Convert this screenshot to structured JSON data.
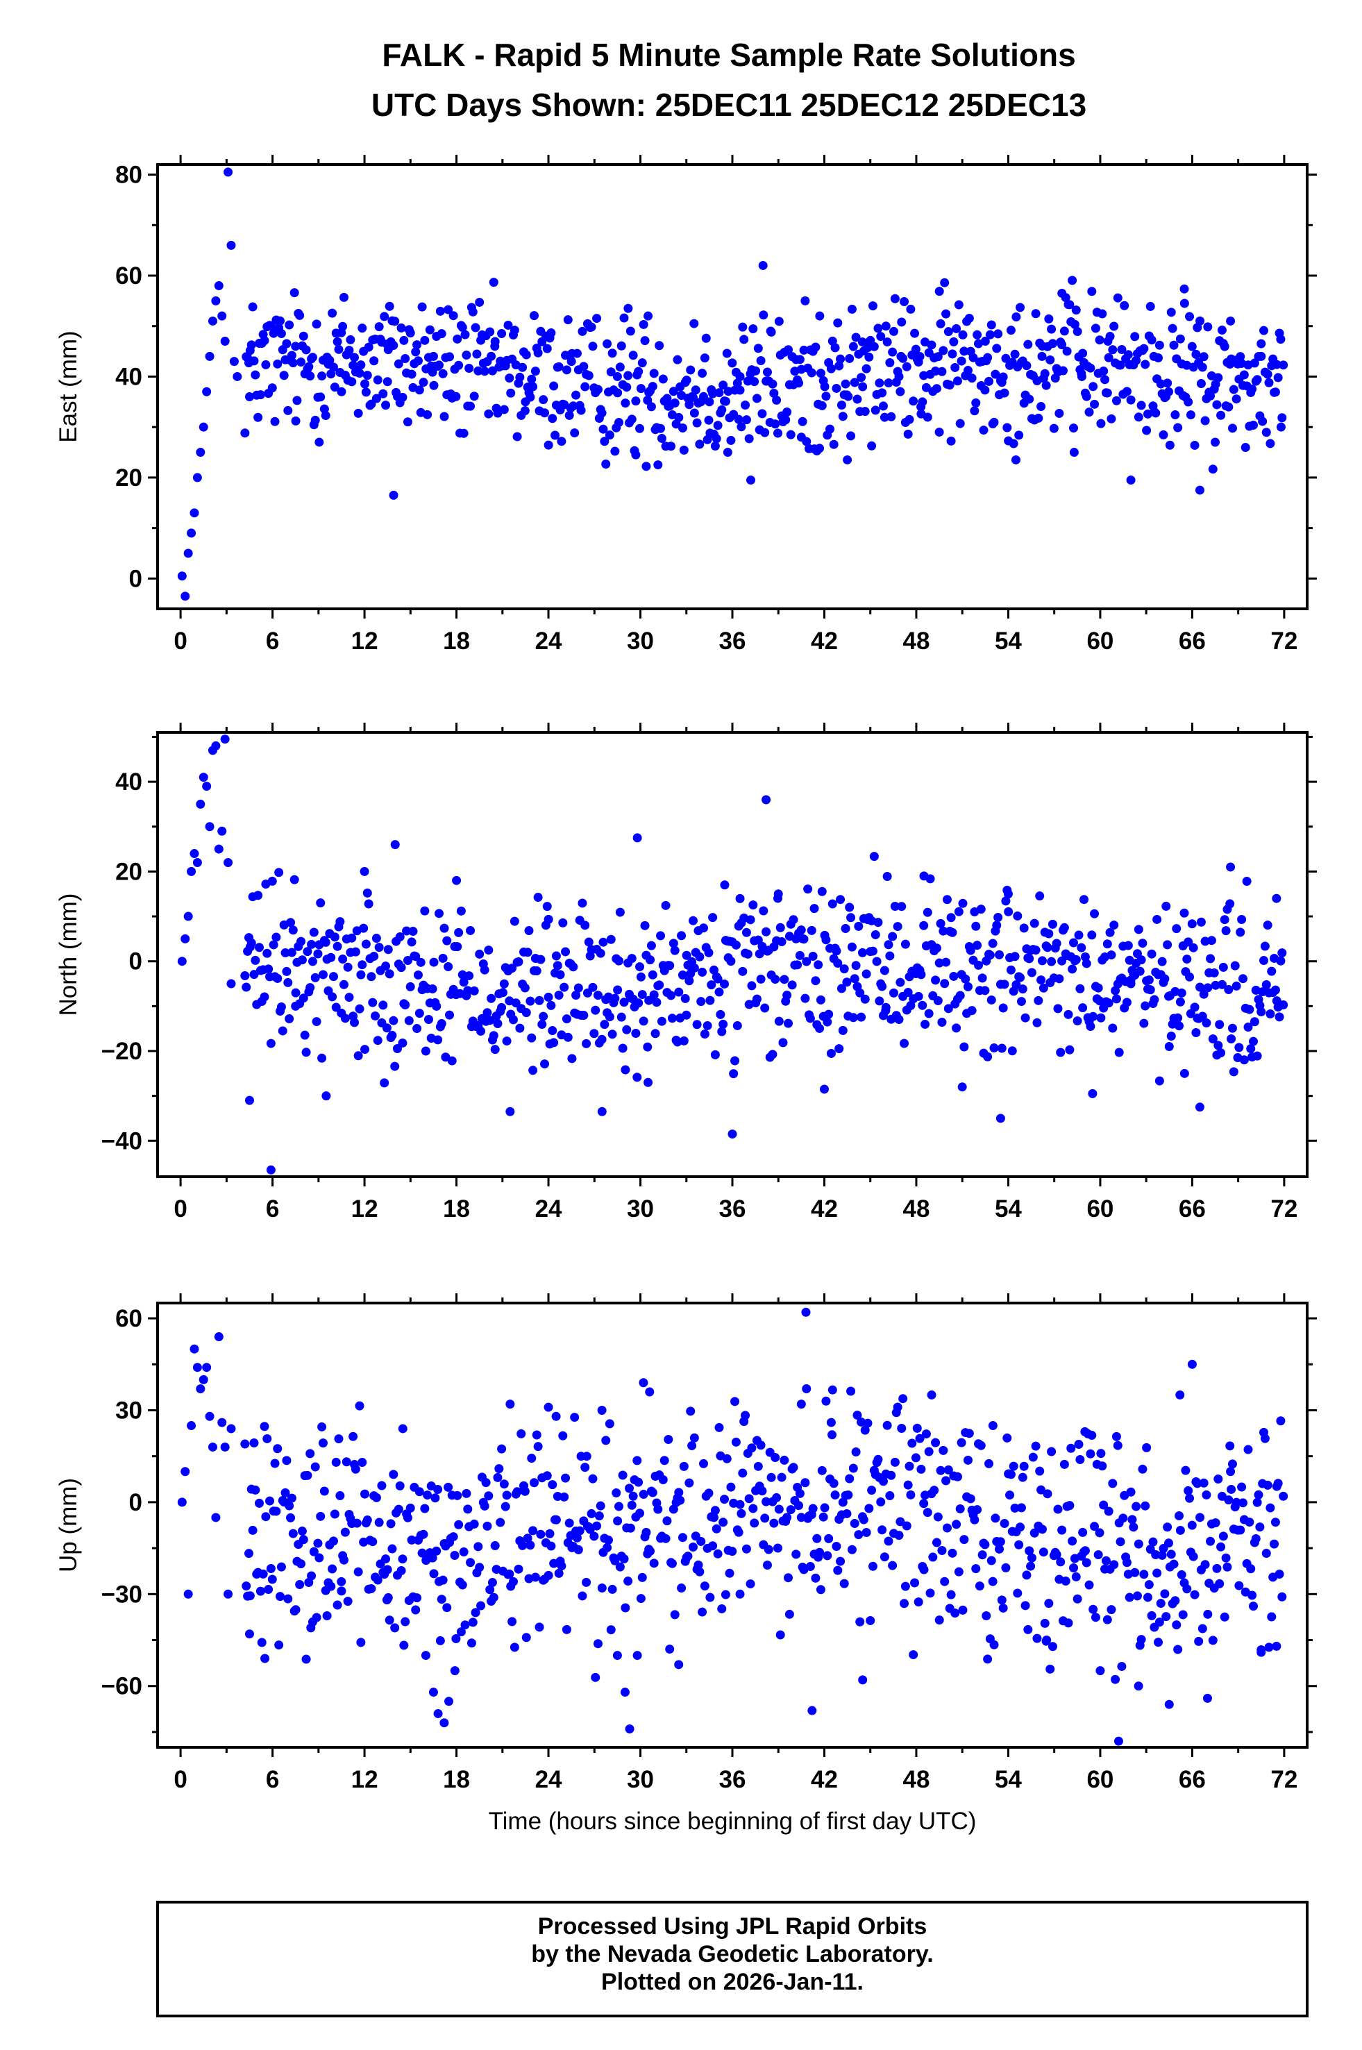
{
  "title": {
    "line1": "FALK - Rapid 5 Minute Sample Rate Solutions",
    "line2": "UTC Days Shown:  25DEC11 25DEC12 25DEC13"
  },
  "footer": {
    "line1": "Processed Using JPL Rapid Orbits",
    "line2": "by the Nevada Geodetic Laboratory.",
    "line3": "Plotted on 2026-Jan-11."
  },
  "colors": {
    "points": "#0000ff",
    "axes": "#000000",
    "background": "#ffffff"
  },
  "chart_data": [
    {
      "type": "scatter",
      "ylabel": "East (mm)",
      "xlabel": "",
      "xlim": [
        -1.5,
        73.5
      ],
      "ylim": [
        -6,
        82
      ],
      "xticks": [
        0,
        6,
        12,
        18,
        24,
        30,
        36,
        42,
        48,
        54,
        60,
        66,
        72
      ],
      "yticks": [
        0,
        20,
        40,
        60,
        80
      ],
      "grid": false,
      "series": [
        {
          "x": [
            0.1,
            0.3,
            0.5,
            0.7,
            0.9,
            1.1,
            1.3,
            1.5,
            1.7,
            1.9,
            2.1,
            2.3,
            2.5,
            2.7,
            2.9,
            3.1,
            3.3,
            3.5,
            3.7,
            4.5,
            7.5,
            10.5,
            13.5,
            13.9,
            16.5,
            20.5,
            22.5,
            25.5,
            28.5,
            29.2,
            29.7,
            30.5,
            33.5,
            34.5,
            35.7,
            36.5,
            37.2,
            38.0,
            38.5,
            40.5,
            41.7,
            43.5,
            44.5,
            47.0,
            48.3,
            49.5,
            52.5,
            54.5,
            56.2,
            57.5,
            58.3,
            58.8,
            60.5,
            62.0,
            63.5,
            65.5,
            66.5,
            67.5,
            68.5,
            70.5,
            71.8
          ],
          "y": [
            0.5,
            -3.5,
            5,
            9,
            13,
            20,
            25,
            30,
            37,
            44,
            51,
            55,
            58,
            52,
            47,
            80.5,
            66,
            43,
            40,
            36,
            46,
            37,
            39,
            16.5,
            44,
            46,
            35,
            43,
            40,
            53.5,
            24.5,
            52,
            50.5,
            35,
            25,
            40,
            19.5,
            62,
            49,
            28,
            52,
            23.5,
            38,
            44,
            34,
            29,
            47,
            23.5,
            44,
            56.5,
            25,
            40,
            47,
            19.5,
            44,
            54.5,
            17.5,
            27,
            51,
            44,
            30
          ]
        }
      ]
    },
    {
      "type": "scatter",
      "ylabel": "North (mm)",
      "xlabel": "",
      "xlim": [
        -1.5,
        73.5
      ],
      "ylim": [
        -48,
        51
      ],
      "xticks": [
        0,
        6,
        12,
        18,
        24,
        30,
        36,
        42,
        48,
        54,
        60,
        66,
        72
      ],
      "yticks": [
        -40,
        -20,
        0,
        20,
        40
      ],
      "grid": false,
      "series": [
        {
          "x": [
            0.1,
            0.3,
            0.5,
            0.7,
            0.9,
            1.1,
            1.3,
            1.5,
            1.7,
            1.9,
            2.1,
            2.3,
            2.5,
            2.7,
            2.9,
            3.1,
            3.3,
            4.5,
            5.9,
            7.5,
            9.5,
            12.0,
            14.0,
            16.0,
            18.0,
            21.5,
            24.0,
            27.5,
            29.8,
            30.5,
            33.0,
            35.5,
            36.0,
            38.2,
            39.0,
            42.0,
            46.0,
            48.5,
            51.0,
            53.5,
            54.0,
            59.5,
            62.0,
            64.5,
            65.5,
            66.5,
            68.5,
            71.5
          ],
          "y": [
            0,
            5,
            10,
            20,
            24,
            22,
            35,
            41,
            39,
            30,
            47,
            48,
            25,
            29,
            49.5,
            22,
            -5,
            -31,
            -46.5,
            -10,
            -30,
            20,
            26,
            -20,
            18,
            -33.5,
            -8,
            -33.5,
            27.5,
            -27,
            -12,
            17,
            -38.5,
            36,
            15,
            -28.5,
            -11,
            19,
            -28,
            -35,
            15,
            -29.5,
            -5,
            -19,
            -25,
            -32.5,
            21,
            14
          ]
        }
      ]
    },
    {
      "type": "scatter",
      "ylabel": "Up (mm)",
      "xlabel": "Time (hours since beginning of first day UTC)",
      "xlim": [
        -1.5,
        73.5
      ],
      "ylim": [
        -80,
        65
      ],
      "xticks": [
        0,
        6,
        12,
        18,
        24,
        30,
        36,
        42,
        48,
        54,
        60,
        66,
        72
      ],
      "yticks": [
        -60,
        -30,
        0,
        30,
        60
      ],
      "grid": false,
      "series": [
        {
          "x": [
            0.1,
            0.3,
            0.5,
            0.7,
            0.9,
            1.1,
            1.3,
            1.5,
            1.7,
            1.9,
            2.1,
            2.3,
            2.5,
            2.7,
            2.9,
            3.1,
            3.3,
            4.5,
            5.5,
            8.5,
            10.5,
            13.5,
            14.5,
            16.0,
            16.5,
            16.8,
            17.2,
            17.5,
            17.9,
            21.5,
            24.0,
            24.5,
            26.5,
            27.5,
            28.5,
            29.0,
            29.3,
            29.8,
            30.2,
            30.6,
            32.5,
            36.5,
            40.5,
            40.8,
            41.2,
            42.5,
            44.5,
            48.5,
            49.0,
            53.0,
            56.5,
            59.0,
            60.0,
            61.2,
            62.5,
            64.5,
            65.2,
            66.0,
            67.0,
            68.5,
            70.5,
            71.5
          ],
          "y": [
            0,
            10,
            -30,
            25,
            50,
            44,
            37,
            40,
            44,
            28,
            18,
            -5,
            54,
            26,
            18,
            -30,
            24,
            -43,
            -51,
            -41,
            -29,
            -22,
            24,
            -50,
            -62,
            -69,
            -72,
            -65,
            -55,
            32,
            31,
            28,
            15,
            -28,
            -50,
            -62,
            -74,
            -50,
            39,
            36,
            -53,
            -30,
            32,
            62,
            -68,
            22,
            -58,
            -22,
            35,
            25,
            -45,
            23,
            -55,
            -78,
            -60,
            -66,
            35,
            45,
            -64,
            10,
            -49,
            -47
          ]
        }
      ]
    }
  ]
}
